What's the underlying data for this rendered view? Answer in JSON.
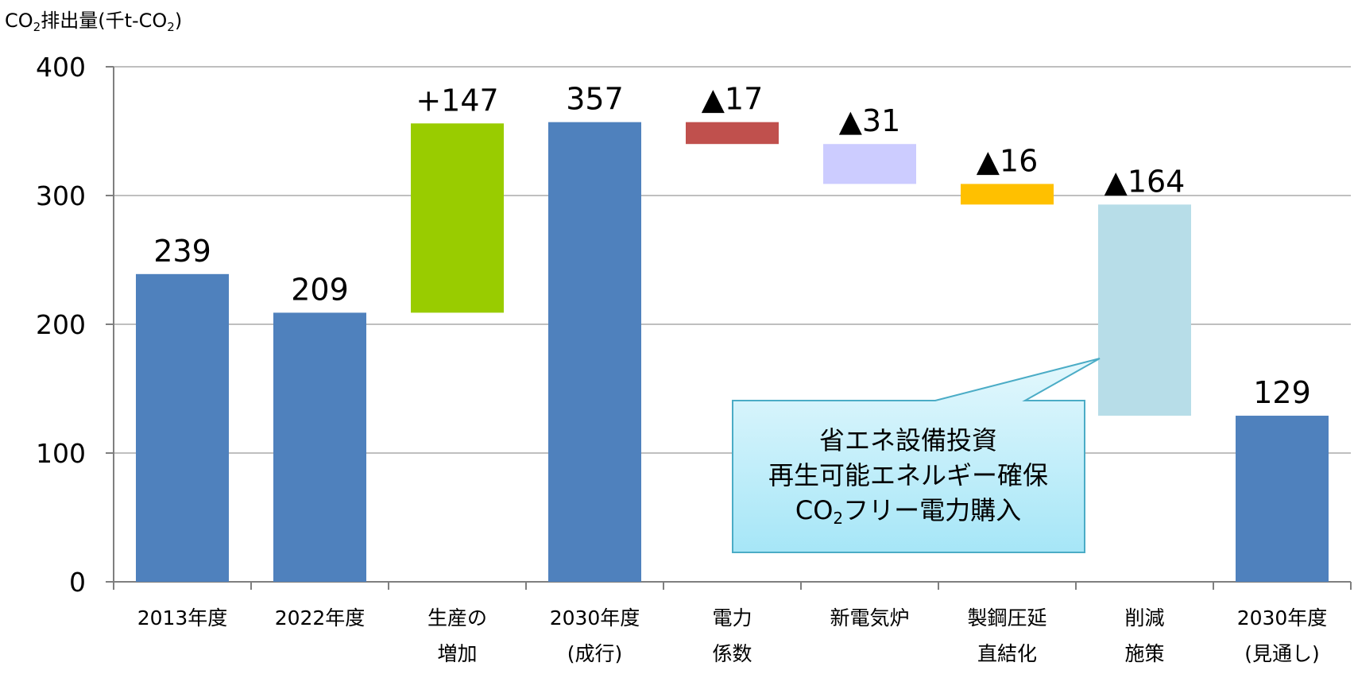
{
  "chart_data": {
    "type": "waterfall",
    "ylabel": {
      "pre": "CO",
      "sub1": "2",
      "mid": "排出量(千t-CO",
      "sub2": "2",
      "post": ")"
    },
    "ylim": [
      0,
      400
    ],
    "yticks": [
      "0",
      "100",
      "200",
      "300",
      "400"
    ],
    "grid": true,
    "categories": [
      [
        "2013年度"
      ],
      [
        "2022年度"
      ],
      [
        "生産の",
        "増加"
      ],
      [
        "2030年度",
        "(成行)"
      ],
      [
        "電力",
        "係数"
      ],
      [
        "新電気炉"
      ],
      [
        "製鋼圧延",
        "直結化"
      ],
      [
        "削減",
        "施策"
      ],
      [
        "2030年度",
        "(見通し)"
      ]
    ],
    "bars": [
      {
        "start": 0,
        "end": 239,
        "label": "239",
        "color": "#4f81bd"
      },
      {
        "start": 0,
        "end": 209,
        "label": "209",
        "color": "#4f81bd"
      },
      {
        "start": 209,
        "end": 356,
        "label": "+147",
        "color": "#99cc00"
      },
      {
        "start": 0,
        "end": 357,
        "label": "357",
        "color": "#4f81bd"
      },
      {
        "start": 340,
        "end": 357,
        "label": "▲17",
        "color": "#c0504d"
      },
      {
        "start": 309,
        "end": 340,
        "label": "▲31",
        "color": "#ccccff"
      },
      {
        "start": 293,
        "end": 309,
        "label": "▲16",
        "color": "#ffc000"
      },
      {
        "start": 129,
        "end": 293,
        "label": "▲164",
        "color": "#b7dde8"
      },
      {
        "start": 0,
        "end": 129,
        "label": "129",
        "color": "#4f81bd"
      }
    ],
    "callout": {
      "lines": [
        {
          "text": "省エネ設備投資"
        },
        {
          "text": "再生可能エネルギー確保"
        },
        {
          "pre": "CO",
          "sub": "2",
          "post": "フリー電力購入"
        }
      ]
    }
  }
}
